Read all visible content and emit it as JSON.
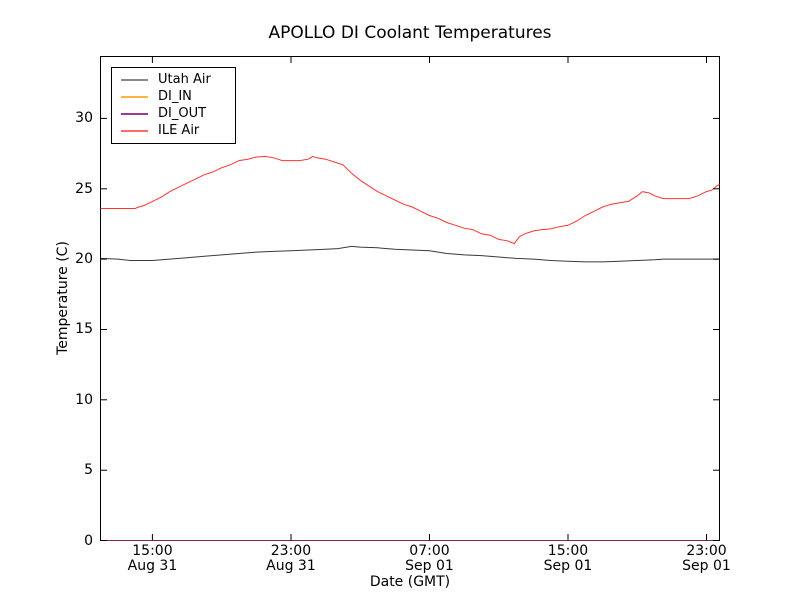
{
  "page": {
    "background": "#ffffff"
  },
  "chart_data": {
    "type": "line",
    "title": "APOLLO DI Coolant Temperatures",
    "xlabel": "Date (GMT)",
    "ylabel": "Temperature (C)",
    "grid": false,
    "legend_position": "upper left",
    "xlim_hours_after_aug31_1200": [
      0,
      35.75
    ],
    "ylim": [
      0,
      34.4
    ],
    "y_ticks": [
      0,
      5,
      10,
      15,
      20,
      25,
      30
    ],
    "x_ticks": [
      {
        "h": 3,
        "time": "15:00",
        "date": "Aug 31"
      },
      {
        "h": 11,
        "time": "23:00",
        "date": "Aug 31"
      },
      {
        "h": 19,
        "time": "07:00",
        "date": "Sep 01"
      },
      {
        "h": 27,
        "time": "15:00",
        "date": "Sep 01"
      },
      {
        "h": 35,
        "time": "23:00",
        "date": "Sep 01"
      }
    ],
    "series": [
      {
        "name": "Utah Air",
        "color": "#3a3a3a",
        "opacity": 1,
        "width": 1,
        "x": [
          0,
          1,
          1.7,
          2.5,
          3,
          4,
          5,
          6,
          7,
          8,
          9,
          10,
          11,
          12,
          13,
          13.7,
          14.5,
          15,
          16,
          17,
          18,
          19,
          19.5,
          20,
          21,
          22,
          23,
          24,
          25,
          26,
          27,
          28,
          29,
          30,
          31,
          32,
          32.5,
          33,
          34,
          35,
          35.75
        ],
        "y": [
          20.05,
          20.0,
          19.9,
          19.9,
          19.9,
          20.0,
          20.1,
          20.2,
          20.3,
          20.4,
          20.5,
          20.55,
          20.6,
          20.65,
          20.7,
          20.75,
          20.9,
          20.85,
          20.8,
          20.7,
          20.65,
          20.6,
          20.5,
          20.4,
          20.3,
          20.25,
          20.15,
          20.05,
          20.0,
          19.9,
          19.85,
          19.8,
          19.8,
          19.85,
          19.9,
          19.95,
          20.0,
          20.0,
          20.0,
          20.0,
          20.0
        ]
      },
      {
        "name": "DI_IN",
        "color": "#ffa500",
        "opacity": 0.6,
        "width": 1,
        "x": [
          0,
          35.75
        ],
        "y": [
          0,
          0
        ]
      },
      {
        "name": "DI_OUT",
        "color": "#800080",
        "opacity": 0.6,
        "width": 1,
        "x": [
          0,
          35.75
        ],
        "y": [
          0,
          0
        ]
      },
      {
        "name": "ILE Air",
        "color": "#ff3333",
        "opacity": 1,
        "width": 1,
        "x": [
          0,
          0.5,
          1,
          1.5,
          2,
          2.2,
          2.5,
          3,
          3.5,
          4,
          4.5,
          5,
          5.5,
          6,
          6.5,
          7,
          7.5,
          8,
          8.5,
          9,
          9.5,
          10,
          10.5,
          11,
          11.5,
          12,
          12.25,
          12.5,
          13,
          13.5,
          14,
          14.5,
          15,
          15.5,
          16,
          16.5,
          17,
          17.5,
          18,
          18.5,
          19,
          19.5,
          20,
          20.5,
          21,
          21.5,
          22,
          22.5,
          23,
          23.5,
          23.9,
          24.2,
          24.5,
          25,
          25.5,
          26,
          26.5,
          27,
          27.5,
          28,
          28.5,
          29,
          29.5,
          30,
          30.5,
          31,
          31.3,
          31.7,
          32,
          32.5,
          33,
          33.5,
          34,
          34.5,
          35,
          35.3,
          35.6,
          35.75
        ],
        "y": [
          23.6,
          23.6,
          23.6,
          23.6,
          23.6,
          23.7,
          23.8,
          24.1,
          24.4,
          24.8,
          25.1,
          25.4,
          25.7,
          26.0,
          26.2,
          26.5,
          26.7,
          27.0,
          27.1,
          27.25,
          27.3,
          27.2,
          27.0,
          27.0,
          27.0,
          27.1,
          27.3,
          27.2,
          27.1,
          26.9,
          26.7,
          26.1,
          25.6,
          25.2,
          24.8,
          24.5,
          24.2,
          23.9,
          23.7,
          23.4,
          23.1,
          22.9,
          22.6,
          22.4,
          22.2,
          22.1,
          21.8,
          21.7,
          21.4,
          21.3,
          21.1,
          21.6,
          21.8,
          22.0,
          22.1,
          22.15,
          22.3,
          22.4,
          22.7,
          23.1,
          23.4,
          23.7,
          23.9,
          24.0,
          24.1,
          24.5,
          24.8,
          24.7,
          24.5,
          24.3,
          24.3,
          24.3,
          24.3,
          24.5,
          24.8,
          24.9,
          25.2,
          25.3
        ]
      }
    ],
    "legend": [
      {
        "label": "Utah Air",
        "color": "#8a8a8a"
      },
      {
        "label": "DI_IN",
        "color": "#ffb340"
      },
      {
        "label": "DI_OUT",
        "color": "#9a3d9a"
      },
      {
        "label": "ILE Air",
        "color": "#ff6b6b"
      }
    ]
  }
}
